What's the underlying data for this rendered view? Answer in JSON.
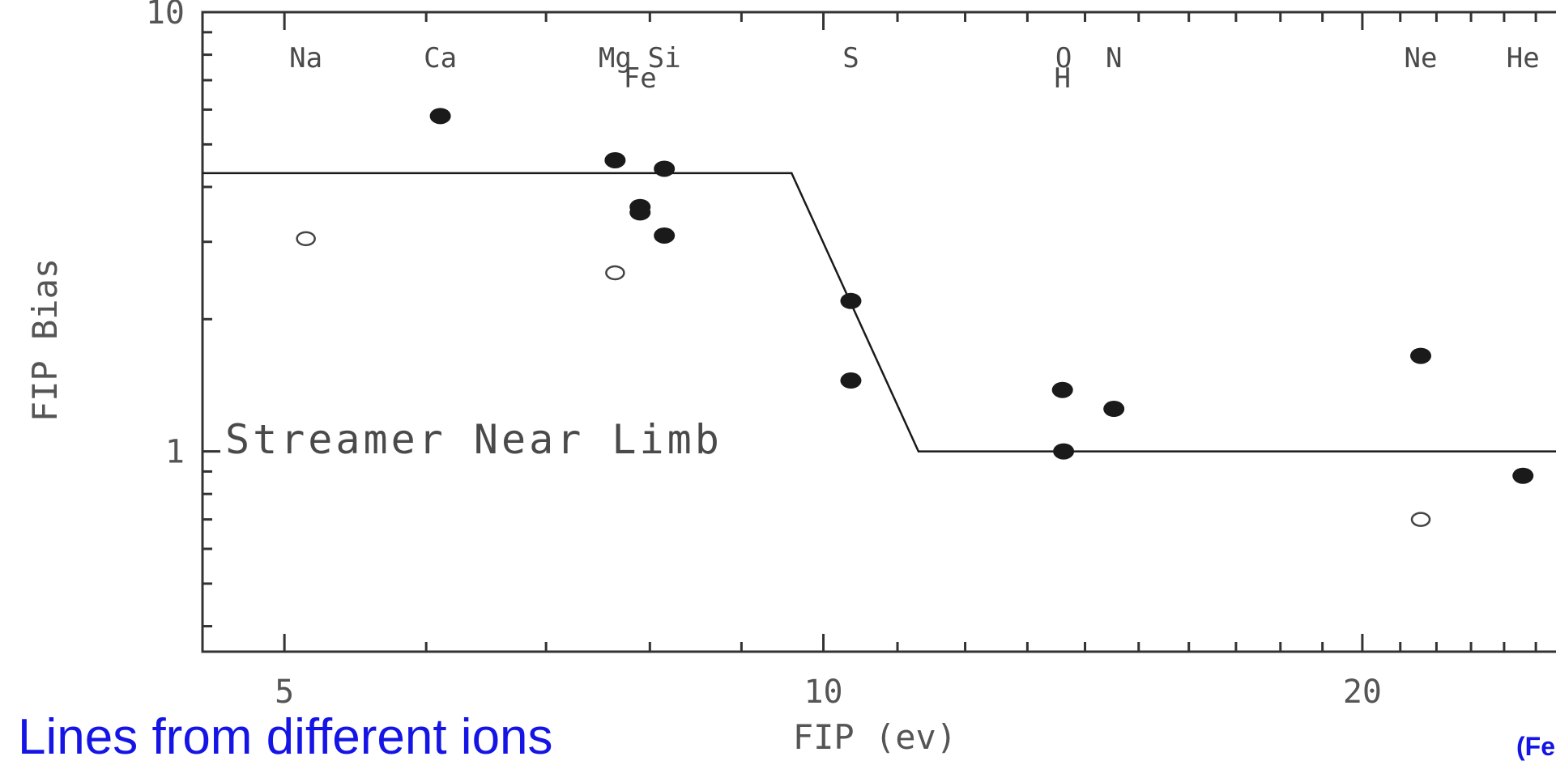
{
  "chart_data": {
    "type": "scatter",
    "xlabel": "FIP (ev)",
    "ylabel": "FIP Bias",
    "xscale": "log",
    "yscale": "log",
    "xlim": [
      4.5,
      27
    ],
    "ylim": [
      0.35,
      10
    ],
    "xticks": [
      5,
      10,
      20
    ],
    "xtick_labels": [
      "5",
      "10",
      "20"
    ],
    "yticks": [
      1,
      10
    ],
    "ytick_labels": [
      "1",
      "10"
    ],
    "grid": false,
    "element_labels": [
      {
        "text": "Na",
        "fip": 5.14
      },
      {
        "text": "Ca",
        "fip": 6.11
      },
      {
        "text": "Mg",
        "fip": 7.65
      },
      {
        "text": "Si",
        "fip": 8.15
      },
      {
        "text": "Fe",
        "fip": 7.9
      },
      {
        "text": "S",
        "fip": 10.36
      },
      {
        "text": "O",
        "fip": 13.62
      },
      {
        "text": "H",
        "fip": 13.6
      },
      {
        "text": "N",
        "fip": 14.53
      },
      {
        "text": "Ne",
        "fip": 21.56
      },
      {
        "text": "He",
        "fip": 24.59
      }
    ],
    "annotation": "Streamer Near Limb",
    "series": [
      {
        "marker": "filled",
        "points": [
          {
            "x": 6.11,
            "y": 5.8
          },
          {
            "x": 7.65,
            "y": 4.6
          },
          {
            "x": 7.9,
            "y": 3.6
          },
          {
            "x": 7.9,
            "y": 3.5
          },
          {
            "x": 8.15,
            "y": 4.4
          },
          {
            "x": 8.15,
            "y": 3.1
          },
          {
            "x": 10.36,
            "y": 2.2
          },
          {
            "x": 10.36,
            "y": 1.45
          },
          {
            "x": 13.6,
            "y": 1.38
          },
          {
            "x": 13.62,
            "y": 1.0
          },
          {
            "x": 14.53,
            "y": 1.25
          },
          {
            "x": 21.56,
            "y": 1.65
          },
          {
            "x": 24.59,
            "y": 0.88
          }
        ]
      },
      {
        "marker": "open",
        "points": [
          {
            "x": 5.14,
            "y": 3.05
          },
          {
            "x": 7.65,
            "y": 2.55
          },
          {
            "x": 21.56,
            "y": 0.7
          }
        ]
      }
    ],
    "model_line": [
      {
        "x": 4.5,
        "y": 4.3
      },
      {
        "x": 9.6,
        "y": 4.3
      },
      {
        "x": 11.3,
        "y": 1.0
      },
      {
        "x": 27,
        "y": 1.0
      }
    ],
    "colors": {
      "ink": "#1a1a1a",
      "axis": "#333333",
      "caption": "#1414e6"
    }
  },
  "footer": {
    "caption": "Lines from different ions",
    "reference": "(Fel"
  }
}
